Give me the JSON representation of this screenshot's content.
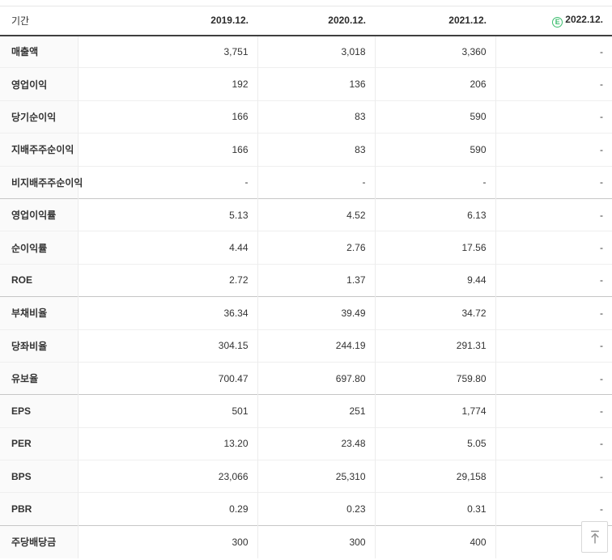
{
  "table": {
    "header": {
      "label": "기간",
      "columns": [
        "2019.12.",
        "2020.12.",
        "2021.12.",
        "2022.12."
      ],
      "estimate_icon": {
        "letter": "E",
        "color": "#3cbd6e"
      }
    },
    "rows": [
      {
        "label": "매출액",
        "values": [
          "3,751",
          "3,018",
          "3,360",
          "-"
        ],
        "group_start": false
      },
      {
        "label": "영업이익",
        "values": [
          "192",
          "136",
          "206",
          "-"
        ],
        "group_start": false
      },
      {
        "label": "당기순이익",
        "values": [
          "166",
          "83",
          "590",
          "-"
        ],
        "group_start": false
      },
      {
        "label": "지배주주순이익",
        "values": [
          "166",
          "83",
          "590",
          "-"
        ],
        "group_start": false
      },
      {
        "label": "비지배주주순이익",
        "values": [
          "-",
          "-",
          "-",
          "-"
        ],
        "group_start": false
      },
      {
        "label": "영업이익률",
        "values": [
          "5.13",
          "4.52",
          "6.13",
          "-"
        ],
        "group_start": true
      },
      {
        "label": "순이익률",
        "values": [
          "4.44",
          "2.76",
          "17.56",
          "-"
        ],
        "group_start": false
      },
      {
        "label": "ROE",
        "values": [
          "2.72",
          "1.37",
          "9.44",
          "-"
        ],
        "group_start": false
      },
      {
        "label": "부채비율",
        "values": [
          "36.34",
          "39.49",
          "34.72",
          "-"
        ],
        "group_start": true
      },
      {
        "label": "당좌비율",
        "values": [
          "304.15",
          "244.19",
          "291.31",
          "-"
        ],
        "group_start": false
      },
      {
        "label": "유보율",
        "values": [
          "700.47",
          "697.80",
          "759.80",
          "-"
        ],
        "group_start": false
      },
      {
        "label": "EPS",
        "values": [
          "501",
          "251",
          "1,774",
          "-"
        ],
        "group_start": true
      },
      {
        "label": "PER",
        "values": [
          "13.20",
          "23.48",
          "5.05",
          "-"
        ],
        "group_start": false
      },
      {
        "label": "BPS",
        "values": [
          "23,066",
          "25,310",
          "29,158",
          "-"
        ],
        "group_start": false
      },
      {
        "label": "PBR",
        "values": [
          "0.29",
          "0.23",
          "0.31",
          "-"
        ],
        "group_start": false
      },
      {
        "label": "주당배당금",
        "values": [
          "300",
          "300",
          "400",
          "-"
        ],
        "group_start": true
      }
    ]
  },
  "colors": {
    "estimate_green": "#3cbd6e",
    "header_border": "#3f3f3f",
    "row_border": "#efefef",
    "group_border": "#c6c6c6",
    "label_bg": "#fafafa",
    "text": "#333333"
  }
}
